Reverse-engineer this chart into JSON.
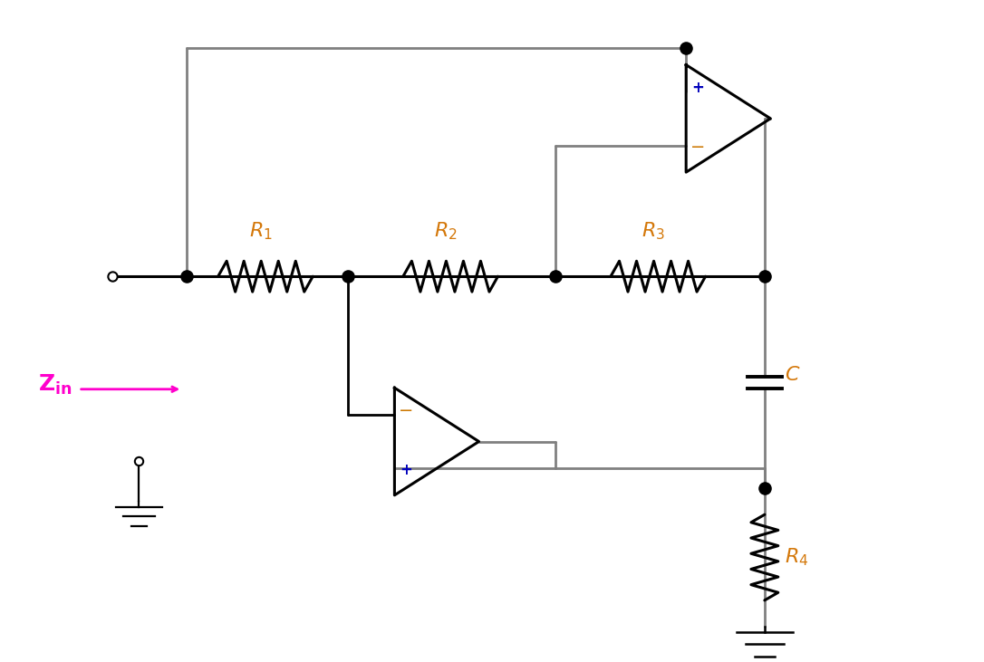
{
  "bg_color": "#ffffff",
  "wire_color": "#808080",
  "black_wire_color": "#000000",
  "dot_color": "#000000",
  "resistor_color": "#000000",
  "opamp_color": "#000000",
  "label_color": "#d4780a",
  "zin_color": "#ff00cc",
  "plus_color": "#0000bb",
  "minus_color": "#cc7700",
  "ground_color": "#000000",
  "cap_color": "#000000",
  "figsize": [
    10.86,
    7.31
  ]
}
